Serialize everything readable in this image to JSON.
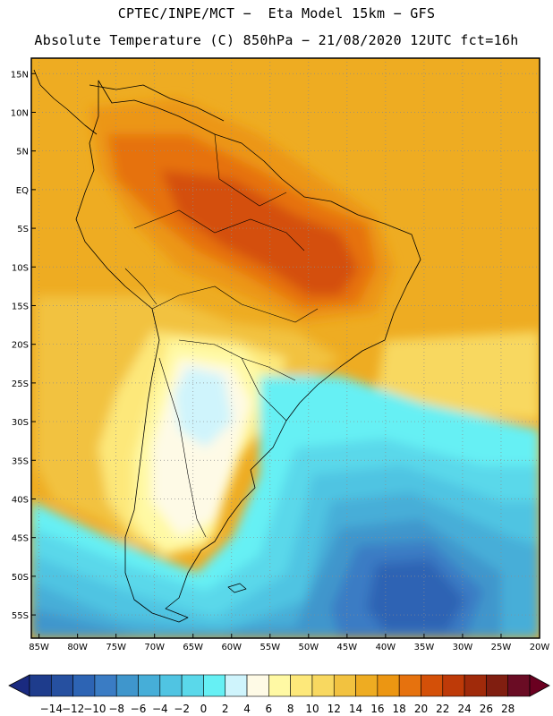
{
  "title": {
    "line1": "CPTEC/INPE/MCT −  Eta Model 15km − GFS",
    "line2": "Absolute Temperature (C) 850hPa − 21/08/2020 12UTC fct=16h"
  },
  "map": {
    "lon_range": [
      -86,
      -20
    ],
    "lat_range": [
      -58,
      17
    ],
    "lat_ticks": [
      {
        "value": 15,
        "label": "15N"
      },
      {
        "value": 10,
        "label": "10N"
      },
      {
        "value": 5,
        "label": "5N"
      },
      {
        "value": 0,
        "label": "EQ"
      },
      {
        "value": -5,
        "label": "5S"
      },
      {
        "value": -10,
        "label": "10S"
      },
      {
        "value": -15,
        "label": "15S"
      },
      {
        "value": -20,
        "label": "20S"
      },
      {
        "value": -25,
        "label": "25S"
      },
      {
        "value": -30,
        "label": "30S"
      },
      {
        "value": -35,
        "label": "35S"
      },
      {
        "value": -40,
        "label": "40S"
      },
      {
        "value": -45,
        "label": "45S"
      },
      {
        "value": -50,
        "label": "50S"
      },
      {
        "value": -55,
        "label": "55S"
      }
    ],
    "lon_ticks": [
      {
        "value": -85,
        "label": "85W"
      },
      {
        "value": -80,
        "label": "80W"
      },
      {
        "value": -75,
        "label": "75W"
      },
      {
        "value": -70,
        "label": "70W"
      },
      {
        "value": -65,
        "label": "65W"
      },
      {
        "value": -60,
        "label": "60W"
      },
      {
        "value": -55,
        "label": "55W"
      },
      {
        "value": -50,
        "label": "50W"
      },
      {
        "value": -45,
        "label": "45W"
      },
      {
        "value": -40,
        "label": "40W"
      },
      {
        "value": -35,
        "label": "35W"
      },
      {
        "value": -30,
        "label": "30W"
      },
      {
        "value": -25,
        "label": "25W"
      },
      {
        "value": -20,
        "label": "20W"
      }
    ]
  },
  "colorbar": {
    "labels": [
      "−14",
      "−12",
      "−10",
      "−8",
      "−6",
      "−4",
      "−2",
      "0",
      "2",
      "4",
      "6",
      "8",
      "10",
      "12",
      "14",
      "16",
      "18",
      "20",
      "22",
      "24",
      "26",
      "28"
    ],
    "colors": [
      "#1e3c8c",
      "#2650a0",
      "#2d64b4",
      "#3a7cc4",
      "#3f96cc",
      "#46aed8",
      "#50c4e2",
      "#5ad8ea",
      "#66f0f4",
      "#cff4fc",
      "#fefae6",
      "#fff9a4",
      "#fde87a",
      "#f8d860",
      "#f2c240",
      "#eeac22",
      "#ec9612",
      "#e6720e",
      "#d45008",
      "#be3a08",
      "#a02a0a",
      "#801e10",
      "#6a0c24"
    ],
    "under_color": "#1a2a80",
    "over_color": "#6a0020"
  }
}
